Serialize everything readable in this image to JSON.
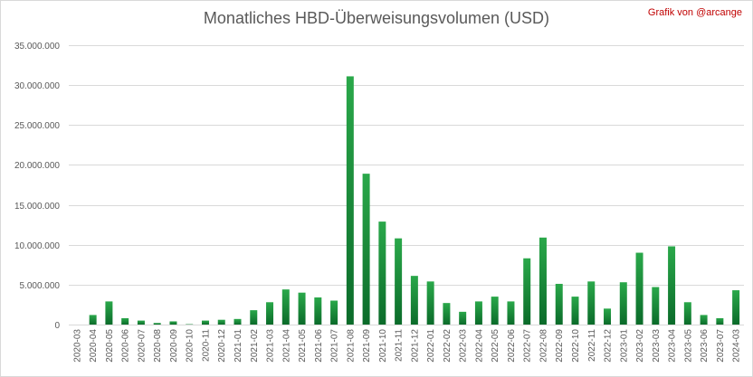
{
  "title": "Monatliches HBD-Überweisungsvolumen (USD)",
  "credit": "Grafik von @arcange",
  "colors": {
    "bar_top": "#2aa84a",
    "bar_bottom": "#0b6b2a",
    "grid": "#d9d9d9",
    "text": "#595959",
    "credit": "#c00000"
  },
  "chart_data": {
    "type": "bar",
    "title": "Monatliches HBD-Überweisungsvolumen (USD)",
    "xlabel": "",
    "ylabel": "",
    "ylim": [
      0,
      35000000
    ],
    "y_ticks": [
      {
        "value": 0,
        "label": "0"
      },
      {
        "value": 5000000,
        "label": "5.000.000"
      },
      {
        "value": 10000000,
        "label": "10.000.000"
      },
      {
        "value": 15000000,
        "label": "15.000.000"
      },
      {
        "value": 20000000,
        "label": "20.000.000"
      },
      {
        "value": 25000000,
        "label": "25.000.000"
      },
      {
        "value": 30000000,
        "label": "30.000.000"
      },
      {
        "value": 35000000,
        "label": "35.000.000"
      }
    ],
    "grid": true,
    "legend": "none",
    "categories": [
      "2020-03",
      "2020-04",
      "2020-05",
      "2020-06",
      "2020-07",
      "2020-08",
      "2020-09",
      "2020-10",
      "2020-11",
      "2020-12",
      "2021-01",
      "2021-02",
      "2021-03",
      "2021-04",
      "2021-05",
      "2021-06",
      "2021-07",
      "2021-08",
      "2021-09",
      "2021-10",
      "2021-11",
      "2021-12",
      "2022-01",
      "2022-02",
      "2022-03",
      "2022-04",
      "2022-05",
      "2022-06",
      "2022-07",
      "2022-08",
      "2022-09",
      "2022-10",
      "2022-11",
      "2022-12",
      "2023-01",
      "2023-02",
      "2023-03",
      "2023-04",
      "2023-05",
      "2023-06",
      "2023-07",
      "2024-03"
    ],
    "values": [
      0,
      1200000,
      2900000,
      800000,
      500000,
      200000,
      400000,
      50000,
      500000,
      600000,
      700000,
      1800000,
      2800000,
      4400000,
      4000000,
      3400000,
      3000000,
      31100000,
      18900000,
      12900000,
      10800000,
      6100000,
      5400000,
      2700000,
      1600000,
      2900000,
      3500000,
      2900000,
      8300000,
      10900000,
      5100000,
      3500000,
      5400000,
      2000000,
      5300000,
      9000000,
      4700000,
      9800000,
      2800000,
      1200000,
      800000,
      4300000
    ]
  }
}
